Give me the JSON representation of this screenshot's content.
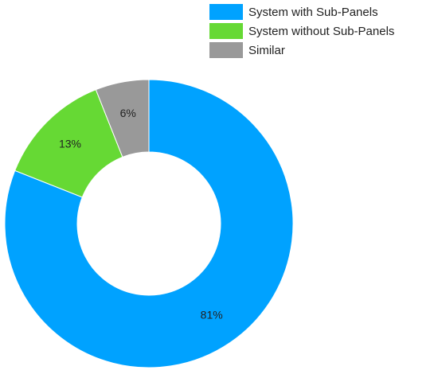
{
  "chart_data": {
    "type": "donut",
    "categories": [
      "System with Sub-Panels",
      "System without Sub-Panels",
      "Similar"
    ],
    "values": [
      81,
      13,
      6
    ],
    "value_labels": [
      "81%",
      "13%",
      "6%"
    ],
    "colors": [
      "#00a2ff",
      "#66d934",
      "#999999"
    ],
    "legend": "top-right"
  }
}
